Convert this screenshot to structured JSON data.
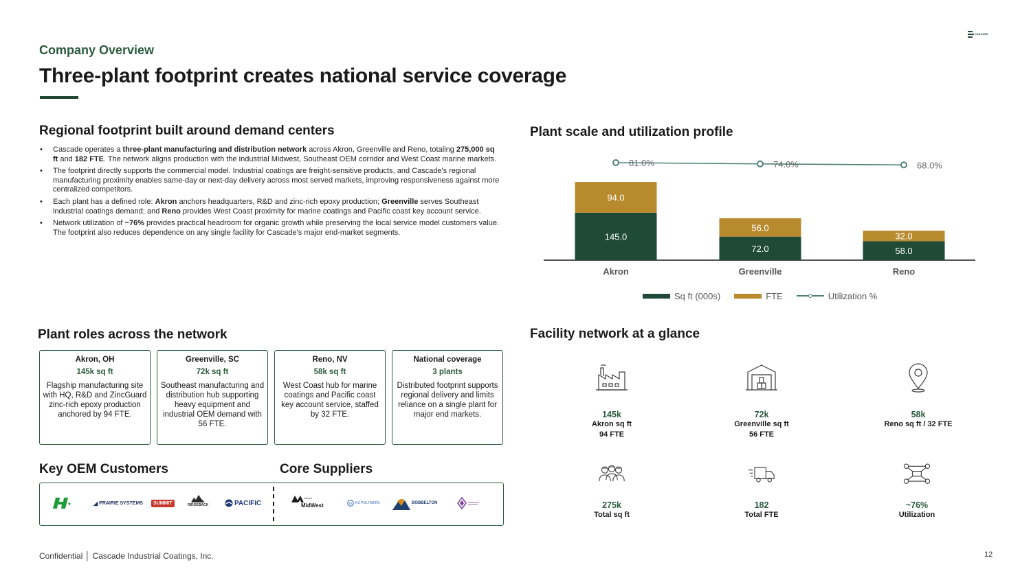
{
  "brand": {
    "logo_text": "CASCADE",
    "accent": "#2b5a3e",
    "dark_green": "#214a36",
    "gold": "#b88a2e"
  },
  "header": {
    "eyebrow": "Company Overview",
    "title": "Three-plant footprint creates national service coverage"
  },
  "left": {
    "heading": "Regional footprint built around demand centers",
    "bullets": [
      [
        {
          "t": "Cascade operates a "
        },
        {
          "t": "three-plant manufacturing and distribution network",
          "b": true
        },
        {
          "t": " across Akron, Greenville and Reno, totaling "
        },
        {
          "t": "275,000 sq ft",
          "b": true
        },
        {
          "t": " and "
        },
        {
          "t": "182 FTE",
          "b": true
        },
        {
          "t": ". The network aligns production with the industrial Midwest, Southeast OEM corridor and West Coast marine markets."
        }
      ],
      [
        {
          "t": "The footprint directly supports the commercial model. Industrial coatings are freight-sensitive products, and Cascade's regional manufacturing proximity enables same-day or next-day delivery across most served markets, improving responsiveness against more centralized competitors."
        }
      ],
      [
        {
          "t": "Each plant has a defined role: "
        },
        {
          "t": "Akron",
          "b": true
        },
        {
          "t": " anchors headquarters, R&D and zinc-rich epoxy production; "
        },
        {
          "t": "Greenville",
          "b": true
        },
        {
          "t": " serves Southeast industrial coatings demand; and "
        },
        {
          "t": "Reno",
          "b": true
        },
        {
          "t": " provides West Coast proximity for marine coatings and Pacific coast key account service."
        }
      ],
      [
        {
          "t": "Network utilization of "
        },
        {
          "t": "~76%",
          "b": true
        },
        {
          "t": " provides practical headroom for organic growth while preserving the local service model customers value. The footprint also reduces dependence on any single facility for Cascade's major end-market segments."
        }
      ]
    ]
  },
  "chart_section": {
    "heading": "Plant scale and utilization profile"
  },
  "chart_data": {
    "type": "bar",
    "stacked": true,
    "categories": [
      "Akron",
      "Greenville",
      "Reno"
    ],
    "series": [
      {
        "name": "Sq ft (000s)",
        "values": [
          145.0,
          72.0,
          58.0
        ],
        "color": "#1e4a36",
        "label_color": "#ffffff"
      },
      {
        "name": "FTE",
        "values": [
          94.0,
          56.0,
          32.0
        ],
        "color": "#b88a2e",
        "label_color": "#ffffff"
      }
    ],
    "line_series": {
      "name": "Utilization %",
      "values": [
        81.0,
        74.0,
        68.0
      ],
      "labels": [
        "81.0%",
        "74.0%",
        "68.0%"
      ],
      "color": "#4e7f77"
    },
    "value_labels": {
      "bars": [
        "145.0",
        "72.0",
        "58.0"
      ],
      "fte": [
        "94.0",
        "56.0",
        "32.0"
      ]
    },
    "legend_position": "bottom",
    "grid": false
  },
  "roles": {
    "heading": "Plant roles across the network",
    "cards": [
      {
        "title": "Akron, OH",
        "stat": "145k sq ft",
        "desc": "Flagship manufacturing site with HQ, R&D and ZincGuard zinc-rich epoxy production anchored by 94 FTE."
      },
      {
        "title": "Greenville, SC",
        "stat": "72k sq ft",
        "desc": "Southeast manufacturing and distribution hub supporting heavy equipment and industrial OEM demand with 56 FTE."
      },
      {
        "title": "Reno, NV",
        "stat": "58k sq ft",
        "desc": "West Coast hub for marine coatings and Pacific coast key account service, staffed by 32 FTE."
      },
      {
        "title": "National coverage",
        "stat": "3 plants",
        "desc": "Distributed footprint supports regional delivery and limits reliance on a single plant for major end markets."
      }
    ]
  },
  "partners": {
    "customers_heading": "Key OEM Customers",
    "suppliers_heading": "Core Suppliers",
    "customer_logos": [
      "PRAIRIE SYSTEMS",
      "SUMMIT",
      "RIDGEBACK",
      "PACIFIC"
    ],
    "supplier_logos": [
      "MidWest",
      "KS POLYMERS",
      "BOBBELTON"
    ]
  },
  "facility": {
    "heading": "Facility network at a glance",
    "kpis": [
      {
        "icon": "factory-icon",
        "value": "145k",
        "l1": "Akron sq ft",
        "l2": "94 FTE"
      },
      {
        "icon": "warehouse-icon",
        "value": "72k",
        "l1": "Greenville sq ft",
        "l2": "56 FTE"
      },
      {
        "icon": "map-pin-icon",
        "value": "58k",
        "l1": "Reno sq ft / 32 FTE",
        "l2": ""
      },
      {
        "icon": "people-icon",
        "value": "275k",
        "l1": "Total sq ft",
        "l2": ""
      },
      {
        "icon": "truck-icon",
        "value": "182",
        "l1": "Total FTE",
        "l2": ""
      },
      {
        "icon": "network-icon",
        "value": "~76%",
        "l1": "Utilization",
        "l2": ""
      }
    ]
  },
  "footer": {
    "text": "Confidential │ Cascade Industrial Coatings, Inc.",
    "page": "12"
  }
}
